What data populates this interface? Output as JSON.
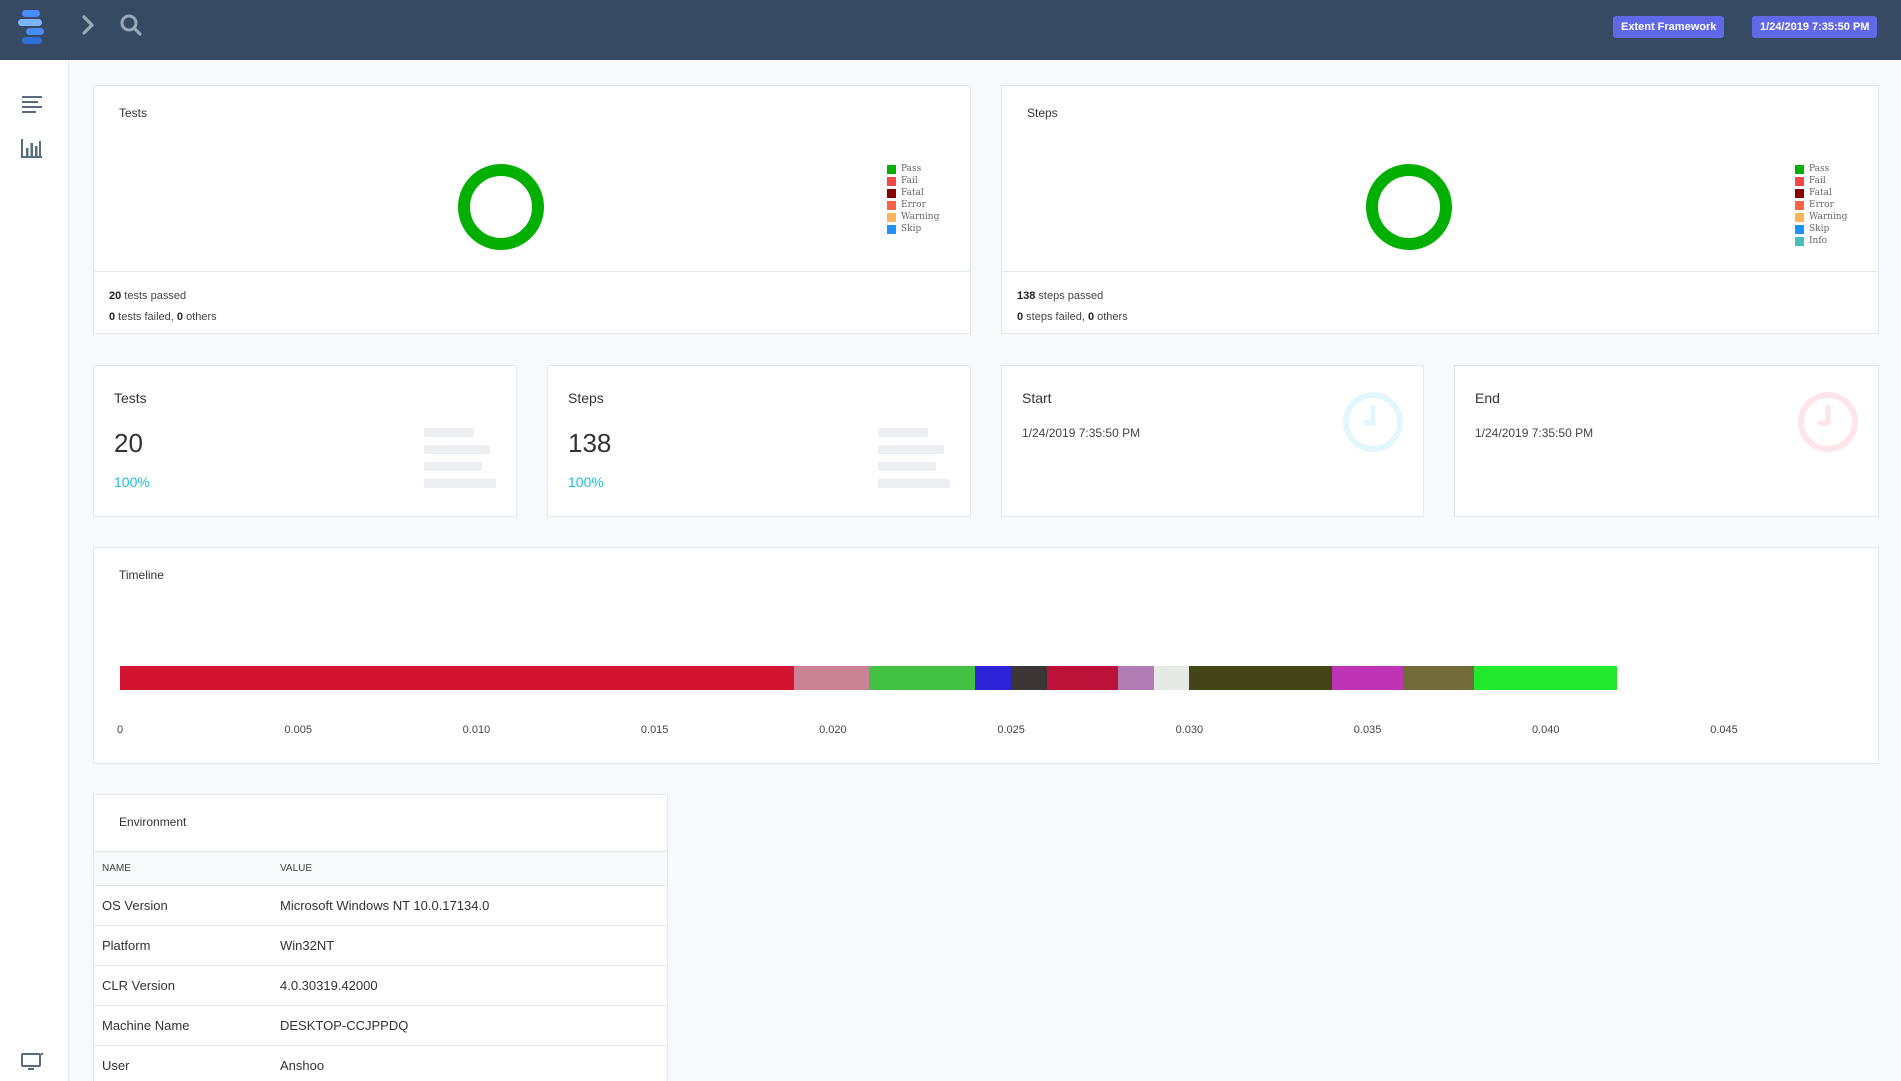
{
  "header": {
    "badge_framework": "Extent Framework",
    "badge_datetime": "1/24/2019 7:35:50 PM",
    "icons": [
      "logo-icon",
      "chevron-right-icon",
      "search-icon"
    ]
  },
  "sidebar": {
    "icons": [
      "dashboard-list-icon",
      "bar-chart-icon",
      "monitor-icon"
    ]
  },
  "charts": {
    "tests": {
      "title": "Tests",
      "legend": [
        {
          "label": "Pass",
          "color": "#00af00"
        },
        {
          "label": "Fail",
          "color": "#f7464a"
        },
        {
          "label": "Fatal",
          "color": "#8b0000"
        },
        {
          "label": "Error",
          "color": "#ff6347"
        },
        {
          "label": "Warning",
          "color": "#fdb45c"
        },
        {
          "label": "Skip",
          "color": "#1e90ff"
        }
      ],
      "passed_count": "20",
      "passed_text": " tests passed",
      "failed_count": "0",
      "failed_text": " tests failed, ",
      "others_count": "0",
      "others_text": " others"
    },
    "steps": {
      "title": "Steps",
      "legend": [
        {
          "label": "Pass",
          "color": "#00af00"
        },
        {
          "label": "Fail",
          "color": "#f7464a"
        },
        {
          "label": "Fatal",
          "color": "#8b0000"
        },
        {
          "label": "Error",
          "color": "#ff6347"
        },
        {
          "label": "Warning",
          "color": "#fdb45c"
        },
        {
          "label": "Skip",
          "color": "#1e90ff"
        },
        {
          "label": "Info",
          "color": "#46bfbd"
        }
      ],
      "passed_count": "138",
      "passed_text": " steps passed",
      "failed_count": "0",
      "failed_text": " steps failed, ",
      "others_count": "0",
      "others_text": " others"
    }
  },
  "stats": {
    "tests": {
      "label": "Tests",
      "value": "20",
      "percent": "100%"
    },
    "steps": {
      "label": "Steps",
      "value": "138",
      "percent": "100%"
    },
    "start": {
      "label": "Start",
      "value": "1/24/2019 7:35:50 PM"
    },
    "end": {
      "label": "End",
      "value": "1/24/2019 7:35:50 PM"
    }
  },
  "chart_data": [
    {
      "type": "pie",
      "title": "Tests",
      "labels": [
        "Pass",
        "Fail",
        "Fatal",
        "Error",
        "Warning",
        "Skip"
      ],
      "values": [
        20,
        0,
        0,
        0,
        0,
        0
      ]
    },
    {
      "type": "pie",
      "title": "Steps",
      "labels": [
        "Pass",
        "Fail",
        "Fatal",
        "Error",
        "Warning",
        "Skip",
        "Info"
      ],
      "values": [
        138,
        0,
        0,
        0,
        0,
        0,
        0
      ]
    },
    {
      "type": "bar",
      "title": "Timeline",
      "orientation": "horizontal-stacked",
      "xlim": [
        0,
        0.045
      ],
      "x_ticks": [
        "0",
        "0.005",
        "0.010",
        "0.015",
        "0.020",
        "0.025",
        "0.030",
        "0.035",
        "0.040",
        "0.045"
      ],
      "segments": [
        {
          "value": 0.0189,
          "color": "#d21430"
        },
        {
          "value": 0.0021,
          "color": "#c98394"
        },
        {
          "value": 0.003,
          "color": "#42c143"
        },
        {
          "value": 0.001,
          "color": "#2e22d8"
        },
        {
          "value": 0.001,
          "color": "#3b3535"
        },
        {
          "value": 0.002,
          "color": "#bc123a"
        },
        {
          "value": 0.001,
          "color": "#b07cb4"
        },
        {
          "value": 0.001,
          "color": "#e5ebe4"
        },
        {
          "value": 0.004,
          "color": "#444516"
        },
        {
          "value": 0.002,
          "color": "#bd34b6"
        },
        {
          "value": 0.002,
          "color": "#706b39"
        },
        {
          "value": 0.004,
          "color": "#22e92e"
        }
      ]
    }
  ],
  "timeline": {
    "title": "Timeline"
  },
  "environment": {
    "title": "Environment",
    "columns": [
      "Name",
      "Value"
    ],
    "rows": [
      [
        "OS Version",
        "Microsoft Windows NT 10.0.17134.0"
      ],
      [
        "Platform",
        "Win32NT"
      ],
      [
        "CLR Version",
        "4.0.30319.42000"
      ],
      [
        "Machine Name",
        "DESKTOP-CCJPPDQ"
      ],
      [
        "User",
        "Anshoo"
      ]
    ]
  },
  "colors": {
    "topbar": "#364a63",
    "accent_badge": "#6168e7",
    "pass": "#00af00",
    "percent": "#1ec0d8"
  }
}
